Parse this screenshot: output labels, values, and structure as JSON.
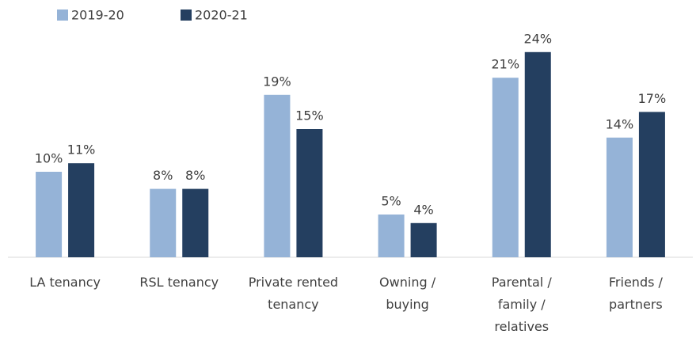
{
  "chart_data": {
    "type": "bar",
    "categories": [
      "LA tenancy",
      "RSL tenancy",
      "Private rented tenancy",
      "Owning / buying",
      "Parental / family / relatives",
      "Friends / partners"
    ],
    "series": [
      {
        "name": "2019-20",
        "color": "#95b3d7",
        "values": [
          10,
          8,
          19,
          5,
          21,
          14
        ],
        "value_labels": [
          "10%",
          "8%",
          "19%",
          "5%",
          "21%",
          "14%"
        ]
      },
      {
        "name": "2020-21",
        "color": "#243f60",
        "values": [
          11,
          8,
          15,
          4,
          24,
          17
        ],
        "value_labels": [
          "11%",
          "8%",
          "15%",
          "4%",
          "24%",
          "17%"
        ]
      }
    ],
    "legend": "top-left"
  }
}
